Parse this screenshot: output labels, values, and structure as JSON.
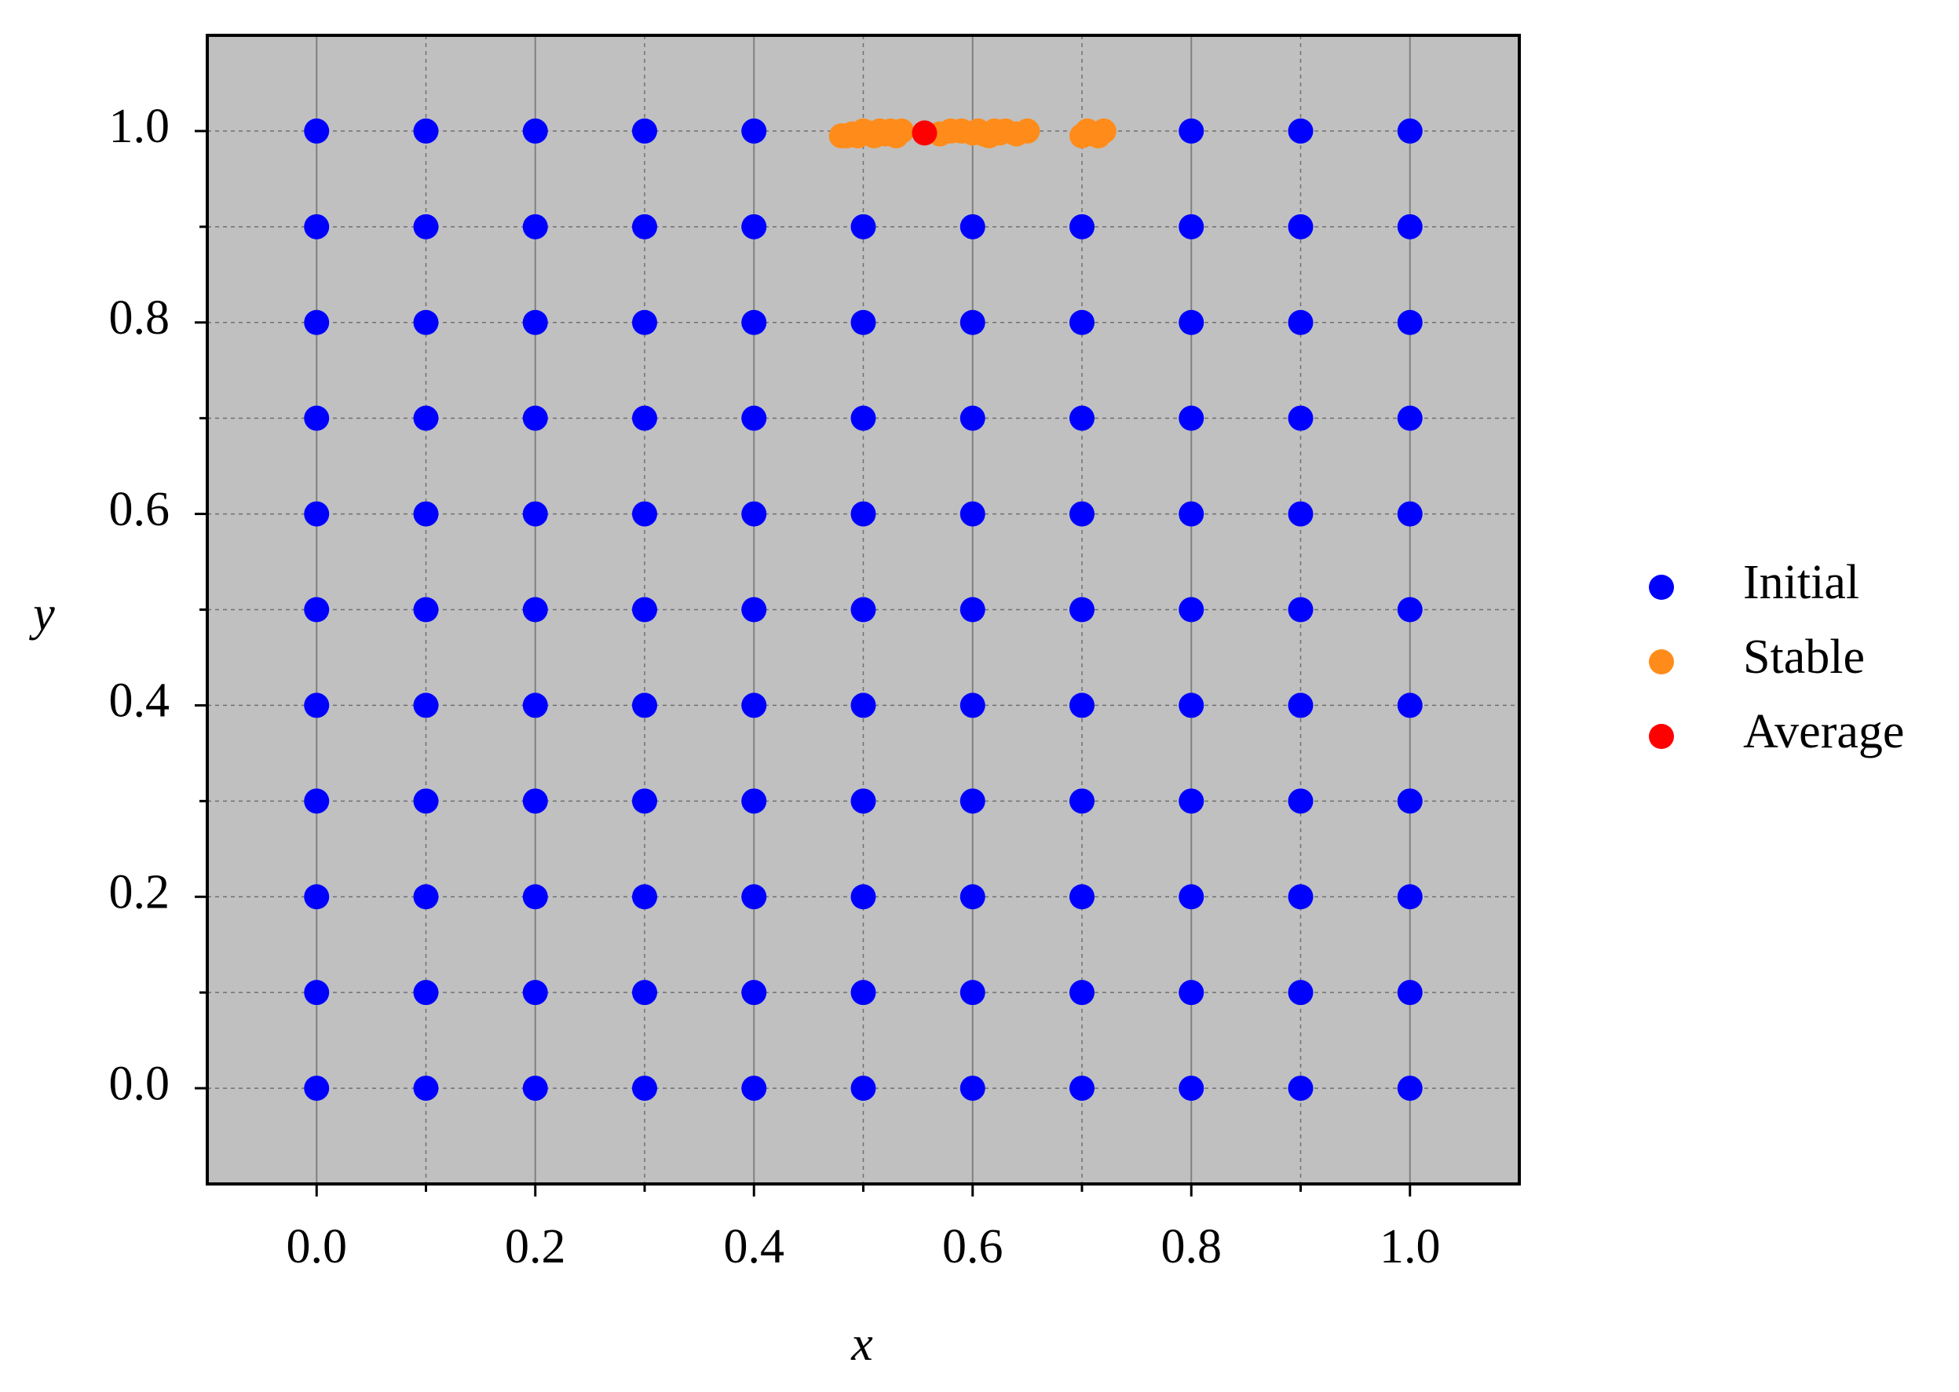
{
  "chart_data": {
    "type": "scatter",
    "xlabel": "x",
    "ylabel": "y",
    "xlim": [
      -0.1,
      1.1
    ],
    "ylim": [
      -0.1,
      1.1
    ],
    "xticks": [
      {
        "value": 0,
        "label": "0.0"
      },
      0.2,
      0.4,
      0.6,
      0.8,
      {
        "value": 1,
        "label": "1.0"
      }
    ],
    "yticks": [
      {
        "value": 0,
        "label": "0.0"
      },
      0.2,
      0.4,
      0.6,
      0.8,
      {
        "value": 1,
        "label": "1.0"
      }
    ],
    "xminorticks": [
      0.1,
      0.3,
      0.5,
      0.7,
      0.9
    ],
    "yminorticks": [
      0.1,
      0.3,
      0.5,
      0.7,
      0.9
    ],
    "grid": true,
    "background": "#c0c0c0",
    "legend": "right",
    "series": [
      {
        "name": "Initial",
        "color": "#0000ff",
        "x": [
          0,
          0.1,
          0.2,
          0.3,
          0.4,
          0.5,
          0.6,
          0.7,
          0.8,
          0.9,
          1,
          0,
          0.1,
          0.2,
          0.3,
          0.4,
          0.5,
          0.6,
          0.7,
          0.8,
          0.9,
          1,
          0,
          0.1,
          0.2,
          0.3,
          0.4,
          0.5,
          0.6,
          0.7,
          0.8,
          0.9,
          1,
          0,
          0.1,
          0.2,
          0.3,
          0.4,
          0.5,
          0.6,
          0.7,
          0.8,
          0.9,
          1,
          0,
          0.1,
          0.2,
          0.3,
          0.4,
          0.5,
          0.6,
          0.7,
          0.8,
          0.9,
          1,
          0,
          0.1,
          0.2,
          0.3,
          0.4,
          0.5,
          0.6,
          0.7,
          0.8,
          0.9,
          1,
          0,
          0.1,
          0.2,
          0.3,
          0.4,
          0.5,
          0.6,
          0.7,
          0.8,
          0.9,
          1,
          0,
          0.1,
          0.2,
          0.3,
          0.4,
          0.5,
          0.6,
          0.7,
          0.8,
          0.9,
          1,
          0,
          0.1,
          0.2,
          0.3,
          0.4,
          0.5,
          0.6,
          0.7,
          0.8,
          0.9,
          1,
          0,
          0.1,
          0.2,
          0.3,
          0.4,
          0.5,
          0.6,
          0.7,
          0.8,
          0.9,
          1,
          0,
          0.1,
          0.2,
          0.3,
          0.4,
          0.8,
          0.9,
          1
        ],
        "values": [
          0,
          0,
          0,
          0,
          0,
          0,
          0,
          0,
          0,
          0,
          0,
          0.1,
          0.1,
          0.1,
          0.1,
          0.1,
          0.1,
          0.1,
          0.1,
          0.1,
          0.1,
          0.1,
          0.2,
          0.2,
          0.2,
          0.2,
          0.2,
          0.2,
          0.2,
          0.2,
          0.2,
          0.2,
          0.2,
          0.3,
          0.3,
          0.3,
          0.3,
          0.3,
          0.3,
          0.3,
          0.3,
          0.3,
          0.3,
          0.3,
          0.4,
          0.4,
          0.4,
          0.4,
          0.4,
          0.4,
          0.4,
          0.4,
          0.4,
          0.4,
          0.4,
          0.5,
          0.5,
          0.5,
          0.5,
          0.5,
          0.5,
          0.5,
          0.5,
          0.5,
          0.5,
          0.5,
          0.6,
          0.6,
          0.6,
          0.6,
          0.6,
          0.6,
          0.6,
          0.6,
          0.6,
          0.6,
          0.6,
          0.7,
          0.7,
          0.7,
          0.7,
          0.7,
          0.7,
          0.7,
          0.7,
          0.7,
          0.7,
          0.7,
          0.8,
          0.8,
          0.8,
          0.8,
          0.8,
          0.8,
          0.8,
          0.8,
          0.8,
          0.8,
          0.8,
          0.9,
          0.9,
          0.9,
          0.9,
          0.9,
          0.9,
          0.9,
          0.9,
          0.9,
          0.9,
          0.9,
          1,
          1,
          1,
          1,
          1,
          1,
          1,
          1
        ]
      },
      {
        "name": "Stable",
        "color": "#ff8c1a",
        "x": [
          0.48,
          0.485,
          0.49,
          0.495,
          0.5,
          0.505,
          0.51,
          0.515,
          0.52,
          0.525,
          0.53,
          0.535,
          0.57,
          0.58,
          0.59,
          0.6,
          0.605,
          0.61,
          0.615,
          0.62,
          0.625,
          0.63,
          0.64,
          0.65,
          0.7,
          0.705,
          0.71,
          0.715,
          0.72
        ],
        "values": [
          0.995,
          0.995,
          0.997,
          0.995,
          1,
          0.998,
          0.995,
          1,
          0.997,
          1,
          0.995,
          1,
          0.997,
          1,
          1,
          0.998,
          1,
          0.997,
          0.995,
          1,
          0.998,
          1,
          0.997,
          1,
          0.995,
          1,
          0.997,
          0.995,
          1
        ]
      },
      {
        "name": "Average",
        "color": "#ff0000",
        "x": [
          0.556
        ],
        "values": [
          0.998
        ]
      }
    ]
  }
}
